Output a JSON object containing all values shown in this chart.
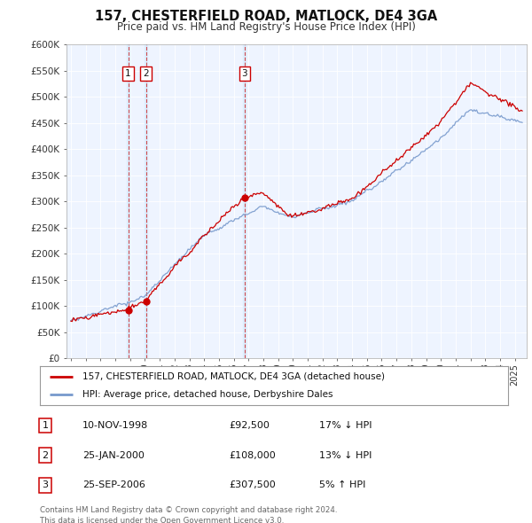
{
  "title": "157, CHESTERFIELD ROAD, MATLOCK, DE4 3GA",
  "subtitle": "Price paid vs. HM Land Registry's House Price Index (HPI)",
  "ylabel_ticks": [
    "£0",
    "£50K",
    "£100K",
    "£150K",
    "£200K",
    "£250K",
    "£300K",
    "£350K",
    "£400K",
    "£450K",
    "£500K",
    "£550K",
    "£600K"
  ],
  "ytick_vals": [
    0,
    50000,
    100000,
    150000,
    200000,
    250000,
    300000,
    350000,
    400000,
    450000,
    500000,
    550000,
    600000
  ],
  "ylim": [
    0,
    600000
  ],
  "red_line_color": "#cc0000",
  "blue_line_color": "#7799cc",
  "vline_color": "#cc2222",
  "vband_color": "#ddeeff",
  "marker_color": "#cc0000",
  "sale_dates": [
    1998.87,
    2000.07,
    2006.73
  ],
  "sale_prices": [
    92500,
    108000,
    307500
  ],
  "sale_labels": [
    "1",
    "2",
    "3"
  ],
  "legend_label_red": "157, CHESTERFIELD ROAD, MATLOCK, DE4 3GA (detached house)",
  "legend_label_blue": "HPI: Average price, detached house, Derbyshire Dales",
  "table_data": [
    [
      "1",
      "10-NOV-1998",
      "£92,500",
      "17% ↓ HPI"
    ],
    [
      "2",
      "25-JAN-2000",
      "£108,000",
      "13% ↓ HPI"
    ],
    [
      "3",
      "25-SEP-2006",
      "£307,500",
      "5% ↑ HPI"
    ]
  ],
  "footer": "Contains HM Land Registry data © Crown copyright and database right 2024.\nThis data is licensed under the Open Government Licence v3.0.",
  "plot_bg_color": "#eef4ff",
  "bg_color": "#ffffff",
  "grid_color": "#ffffff"
}
